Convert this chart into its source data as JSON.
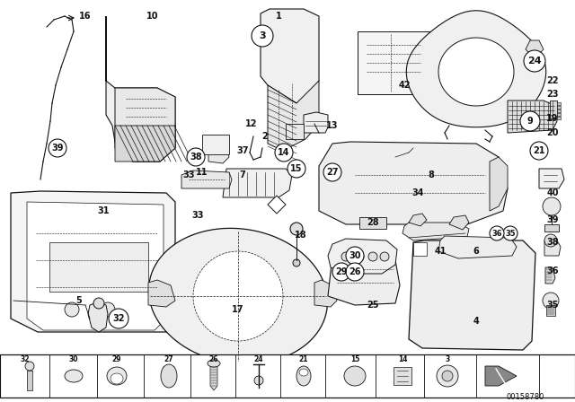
{
  "bg_color": "#ffffff",
  "line_color": "#111111",
  "part_number_id": "00158780",
  "figsize": [
    6.4,
    4.48
  ],
  "dpi": 100
}
